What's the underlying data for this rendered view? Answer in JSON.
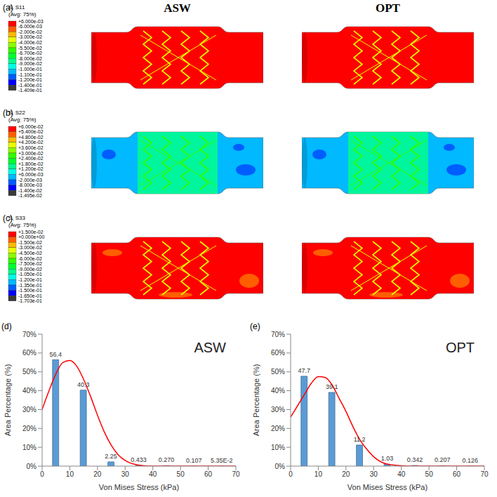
{
  "chart_data": [
    {
      "type": "contour",
      "panel": "(a)",
      "columns": [
        "ASW",
        "OPT"
      ],
      "colorbar": {
        "title": "S, S11",
        "subtitle": "(Avg: 75%)",
        "ticks": [
          {
            "value": 0.006,
            "label": "+6.000e-03"
          },
          {
            "value": -0.006,
            "label": "-6.000e-03"
          },
          {
            "value": -0.02,
            "label": "-2.000e-02"
          },
          {
            "value": -0.03,
            "label": "-3.000e-02"
          },
          {
            "value": -0.04,
            "label": "-4.000e-02"
          },
          {
            "value": -0.055,
            "label": "-5.500e-02"
          },
          {
            "value": -0.067,
            "label": "-6.700e-02"
          },
          {
            "value": -0.08,
            "label": "-8.000e-02"
          },
          {
            "value": -0.09,
            "label": "-9.000e-02"
          },
          {
            "value": -0.1,
            "label": "-1.000e-01"
          },
          {
            "value": -0.11,
            "label": "-1.100e-01"
          },
          {
            "value": -0.12,
            "label": "-1.200e-01"
          },
          {
            "value": -0.14,
            "label": "-1.400e-01"
          },
          {
            "value": -0.1409,
            "label": "-1.409e-01"
          }
        ],
        "colors": [
          "#ff0000",
          "#ff5e00",
          "#ffb900",
          "#e9ff00",
          "#8cff00",
          "#2eff00",
          "#00ff2e",
          "#00ff8b",
          "#00ffe8",
          "#00b9ff",
          "#005dff",
          "#0000ff",
          "#3a3a3a"
        ]
      }
    },
    {
      "type": "contour",
      "panel": "(b)",
      "colorbar": {
        "title": "S, S22",
        "subtitle": "(Avg: 75%)",
        "ticks": [
          {
            "value": 0.06,
            "label": "+6.000e-02"
          },
          {
            "value": 0.054,
            "label": "+5.400e-02"
          },
          {
            "value": 0.048,
            "label": "+4.800e-02"
          },
          {
            "value": 0.042,
            "label": "+4.200e-02"
          },
          {
            "value": 0.036,
            "label": "+3.600e-02"
          },
          {
            "value": 0.03,
            "label": "+3.000e-02"
          },
          {
            "value": 0.024,
            "label": "+2.400e-02"
          },
          {
            "value": 0.018,
            "label": "+1.800e-02"
          },
          {
            "value": 0.012,
            "label": "+1.200e-02"
          },
          {
            "value": 0.006,
            "label": "+6.000e-03"
          },
          {
            "value": -0.002,
            "label": "-2.000e-03"
          },
          {
            "value": -0.008,
            "label": "-8.000e-03"
          },
          {
            "value": -0.014,
            "label": "-1.400e-02"
          },
          {
            "value": -0.01495,
            "label": "-1.495e-02"
          }
        ],
        "colors": [
          "#ff0000",
          "#ff5e00",
          "#ffb900",
          "#e9ff00",
          "#8cff00",
          "#2eff00",
          "#00ff2e",
          "#00ff8b",
          "#00ffe8",
          "#00b9ff",
          "#005dff",
          "#0000ff",
          "#3a3a3a"
        ]
      }
    },
    {
      "type": "contour",
      "panel": "(c)",
      "colorbar": {
        "title": "S, S33",
        "subtitle": "(Avg: 75%)",
        "ticks": [
          {
            "value": 0.015,
            "label": "+1.500e-02"
          },
          {
            "value": 0,
            "label": "+0.000e+00"
          },
          {
            "value": -0.015,
            "label": "-1.500e-02"
          },
          {
            "value": -0.03,
            "label": "-3.000e-02"
          },
          {
            "value": -0.045,
            "label": "-4.500e-02"
          },
          {
            "value": -0.06,
            "label": "-6.000e-02"
          },
          {
            "value": -0.075,
            "label": "-7.500e-02"
          },
          {
            "value": -0.09,
            "label": "-9.000e-02"
          },
          {
            "value": -0.105,
            "label": "-1.050e-01"
          },
          {
            "value": -0.12,
            "label": "-1.200e-01"
          },
          {
            "value": -0.135,
            "label": "-1.350e-01"
          },
          {
            "value": -0.15,
            "label": "-1.500e-01"
          },
          {
            "value": -0.165,
            "label": "-1.650e-01"
          },
          {
            "value": -0.1703,
            "label": "-1.703e-01"
          }
        ],
        "colors": [
          "#ff0000",
          "#ff5e00",
          "#ffb900",
          "#e9ff00",
          "#8cff00",
          "#2eff00",
          "#00ff2e",
          "#00ff8b",
          "#00ffe8",
          "#00b9ff",
          "#005dff",
          "#0000ff",
          "#3a3a3a"
        ]
      }
    },
    {
      "type": "histogram",
      "panel": "(d)",
      "title": "ASW",
      "x_label": "Von Mises Stress (kPa)",
      "y_label": "Area Percentage (%)",
      "bins": [
        0,
        10,
        20,
        30,
        40,
        50,
        60,
        70
      ],
      "values": [
        56.4,
        40.3,
        2.25,
        0.433,
        0.27,
        0.107,
        0.0535
      ],
      "value_labels": [
        "56.4",
        "40.3",
        "2.25",
        "0.433",
        "0.270",
        "0.107",
        "5.35E-2"
      ],
      "data_labels": true,
      "color": "#5b9bd5",
      "xlim": [
        0,
        70
      ],
      "xticks": [
        0,
        10,
        20,
        30,
        40,
        50,
        60,
        70
      ],
      "ylim": [
        0,
        70
      ],
      "yticks": [
        {
          "value": 0,
          "label": "0%"
        },
        {
          "value": 10,
          "label": "10%"
        },
        {
          "value": 20,
          "label": "20%"
        },
        {
          "value": 30,
          "label": "30%"
        },
        {
          "value": 40,
          "label": "40%"
        },
        {
          "value": 50,
          "label": "50%"
        },
        {
          "value": 60,
          "label": "60%"
        },
        {
          "value": 70,
          "label": "70%"
        }
      ],
      "grid": false,
      "curve": {
        "color": "#ff0000",
        "x": [
          0,
          2.5,
          5,
          7.5,
          10,
          12.5,
          15,
          17.5,
          20,
          22.5,
          25,
          27.5,
          30,
          35,
          40,
          50,
          70
        ],
        "y": [
          30,
          40,
          49,
          55,
          56,
          53,
          46,
          37,
          27,
          18,
          11,
          6,
          3,
          0.5,
          0,
          0,
          0
        ]
      }
    },
    {
      "type": "histogram",
      "panel": "(e)",
      "title": "OPT",
      "x_label": "Von Mises Stress (kPa)",
      "y_label": "Area Percentage (%)",
      "bins": [
        0,
        10,
        20,
        30,
        40,
        50,
        60,
        70
      ],
      "values": [
        47.7,
        39.1,
        11.2,
        1.03,
        0.342,
        0.207,
        0.126
      ],
      "value_labels": [
        "47.7",
        "39.1",
        "11.2",
        "1.03",
        "0.342",
        "0.207",
        "0.126"
      ],
      "data_labels": true,
      "color": "#5b9bd5",
      "xlim": [
        0,
        70
      ],
      "xticks": [
        0,
        10,
        20,
        30,
        40,
        50,
        60,
        70
      ],
      "ylim": [
        0,
        70
      ],
      "yticks": [
        {
          "value": 0,
          "label": "0%"
        },
        {
          "value": 10,
          "label": "10%"
        },
        {
          "value": 20,
          "label": "20%"
        },
        {
          "value": 30,
          "label": "30%"
        },
        {
          "value": 40,
          "label": "40%"
        },
        {
          "value": 50,
          "label": "50%"
        },
        {
          "value": 60,
          "label": "60%"
        },
        {
          "value": 70,
          "label": "70%"
        }
      ],
      "grid": false,
      "curve": {
        "color": "#ff0000",
        "x": [
          0,
          5,
          7.5,
          10,
          12.5,
          15,
          17.5,
          20,
          22.5,
          25,
          27.5,
          30,
          35,
          40,
          45,
          70
        ],
        "y": [
          26,
          38,
          44,
          47.5,
          47,
          43,
          36,
          29,
          21,
          14,
          9,
          5,
          1,
          0.2,
          0,
          0
        ]
      }
    }
  ]
}
